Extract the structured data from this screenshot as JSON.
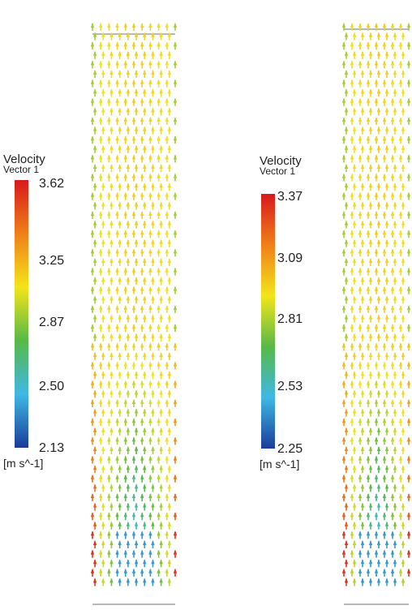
{
  "panels": [
    {
      "legend": {
        "title": "Velocity",
        "subtitle": "Vector 1",
        "ticks": [
          "3.62",
          "3.25",
          "2.87",
          "2.50",
          "2.13"
        ],
        "unit": "[m s^-1]",
        "colormap": [
          "#d7191c",
          "#f07f1a",
          "#f2e51a",
          "#58b947",
          "#3fb8e4",
          "#1b3c9a"
        ]
      }
    },
    {
      "legend": {
        "title": "Velocity",
        "subtitle": "Vector 1",
        "ticks": [
          "3.37",
          "3.09",
          "2.81",
          "2.53",
          "2.25"
        ],
        "unit": "[m s^-1]",
        "colormap": [
          "#d7191c",
          "#f07f1a",
          "#f2e51a",
          "#58b947",
          "#3fb8e4",
          "#1b3c9a"
        ]
      }
    }
  ]
}
